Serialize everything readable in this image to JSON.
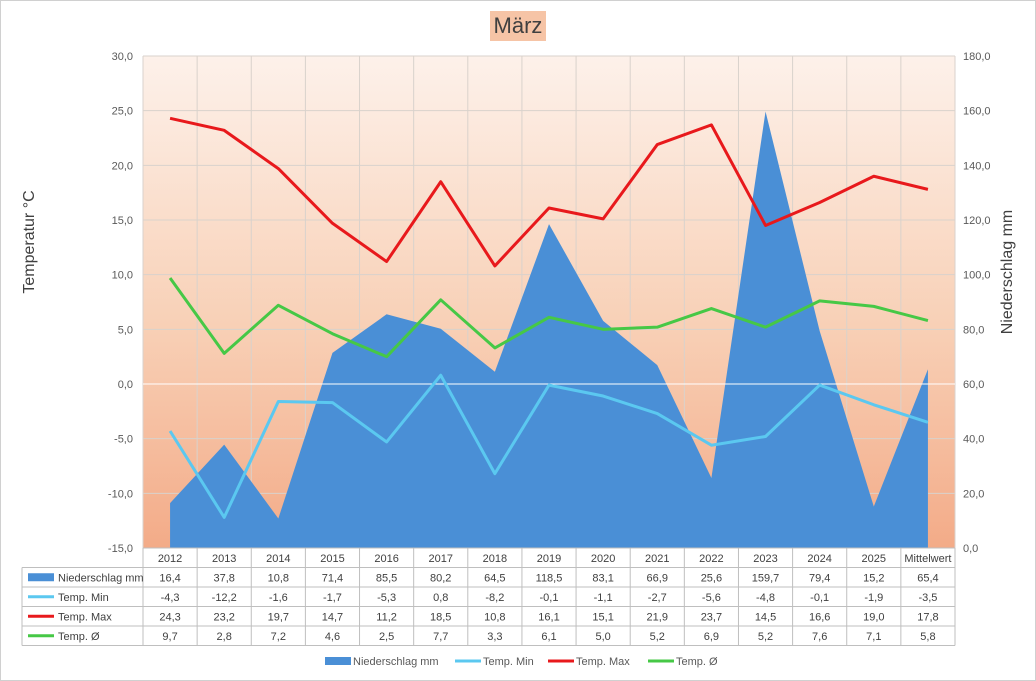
{
  "chart_data": {
    "type": "line",
    "title": "März",
    "categories": [
      "2012",
      "2013",
      "2014",
      "2015",
      "2016",
      "2017",
      "2018",
      "2019",
      "2020",
      "2021",
      "2022",
      "2023",
      "2024",
      "2025",
      "Mittelwert"
    ],
    "ylabel_left": "Temperatur °C",
    "ylabel_right": "Niederschlag mm",
    "ylim_left": [
      -15,
      30
    ],
    "ylim_right": [
      0,
      180
    ],
    "yticks_left": [
      "30,0",
      "25,0",
      "20,0",
      "15,0",
      "10,0",
      "5,0",
      "0,0",
      "-5,0",
      "-10,0",
      "-15,0"
    ],
    "yticks_right": [
      "180,0",
      "160,0",
      "140,0",
      "120,0",
      "100,0",
      "80,0",
      "60,0",
      "40,0",
      "20,0",
      "0,0"
    ],
    "grid": true,
    "legend_position": "bottom",
    "series": [
      {
        "name": "Niederschlag mm",
        "type": "area",
        "axis": "right",
        "color": "#4a8fd6",
        "values": [
          16.4,
          37.8,
          10.8,
          71.4,
          85.5,
          80.2,
          64.5,
          118.5,
          83.1,
          66.9,
          25.6,
          159.7,
          79.4,
          15.2,
          65.4
        ],
        "labels": [
          "16,4",
          "37,8",
          "10,8",
          "71,4",
          "85,5",
          "80,2",
          "64,5",
          "118,5",
          "83,1",
          "66,9",
          "25,6",
          "159,7",
          "79,4",
          "15,2",
          "65,4"
        ]
      },
      {
        "name": "Temp. Min",
        "type": "line",
        "axis": "left",
        "color": "#5bc8f0",
        "values": [
          -4.3,
          -12.2,
          -1.6,
          -1.7,
          -5.3,
          0.8,
          -8.2,
          -0.1,
          -1.1,
          -2.7,
          -5.6,
          -4.8,
          -0.1,
          -1.9,
          -3.5
        ],
        "labels": [
          "-4,3",
          "-12,2",
          "-1,6",
          "-1,7",
          "-5,3",
          "0,8",
          "-8,2",
          "-0,1",
          "-1,1",
          "-2,7",
          "-5,6",
          "-4,8",
          "-0,1",
          "-1,9",
          "-3,5"
        ]
      },
      {
        "name": "Temp. Max",
        "type": "line",
        "axis": "left",
        "color": "#e8191c",
        "values": [
          24.3,
          23.2,
          19.7,
          14.7,
          11.2,
          18.5,
          10.8,
          16.1,
          15.1,
          21.9,
          23.7,
          14.5,
          16.6,
          19.0,
          17.8
        ],
        "labels": [
          "24,3",
          "23,2",
          "19,7",
          "14,7",
          "11,2",
          "18,5",
          "10,8",
          "16,1",
          "15,1",
          "21,9",
          "23,7",
          "14,5",
          "16,6",
          "19,0",
          "17,8"
        ]
      },
      {
        "name": "Temp. Ø",
        "type": "line",
        "axis": "left",
        "color": "#46c846",
        "values": [
          9.7,
          2.8,
          7.2,
          4.6,
          2.5,
          7.7,
          3.3,
          6.1,
          5.0,
          5.2,
          6.9,
          5.2,
          7.6,
          7.1,
          5.8
        ],
        "labels": [
          "9,7",
          "2,8",
          "7,2",
          "4,6",
          "2,5",
          "7,7",
          "3,3",
          "6,1",
          "5,0",
          "5,2",
          "6,9",
          "5,2",
          "7,6",
          "7,1",
          "5,8"
        ]
      }
    ]
  }
}
